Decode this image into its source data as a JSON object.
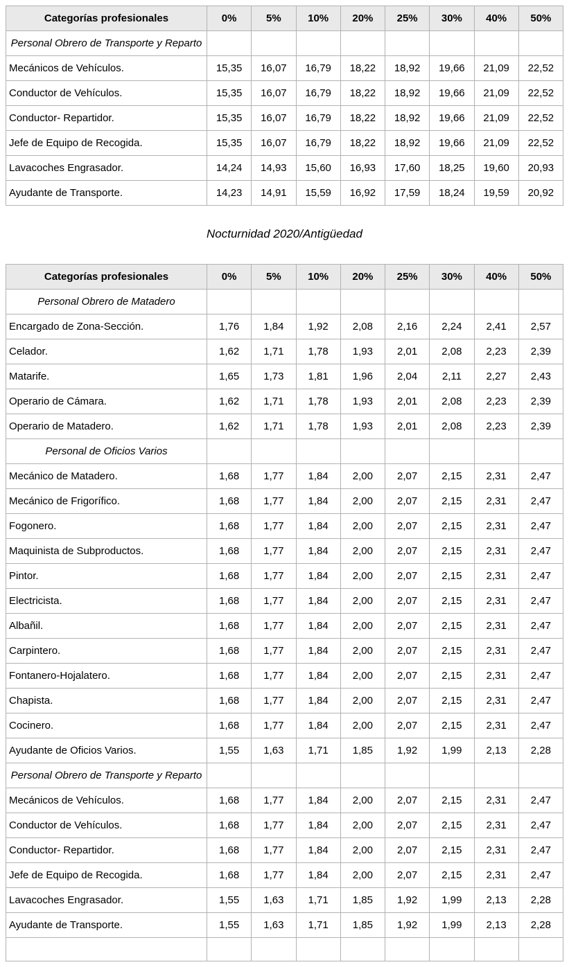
{
  "section_title": "Nocturnidad 2020/Antigüedad",
  "columns": [
    "Categorías profesionales",
    "0%",
    "5%",
    "10%",
    "20%",
    "25%",
    "30%",
    "40%",
    "50%"
  ],
  "colors": {
    "header_bg": "#e9e9e9",
    "border": "#b2b2b2",
    "text": "#000000"
  },
  "tables": [
    {
      "sections": [
        {
          "name": "Personal Obrero de Transporte y Reparto",
          "rows": [
            {
              "label": "Mecánicos de Vehículos.",
              "values": [
                "15,35",
                "16,07",
                "16,79",
                "18,22",
                "18,92",
                "19,66",
                "21,09",
                "22,52"
              ]
            },
            {
              "label": "Conductor de Vehículos.",
              "values": [
                "15,35",
                "16,07",
                "16,79",
                "18,22",
                "18,92",
                "19,66",
                "21,09",
                "22,52"
              ]
            },
            {
              "label": "Conductor- Repartidor.",
              "values": [
                "15,35",
                "16,07",
                "16,79",
                "18,22",
                "18,92",
                "19,66",
                "21,09",
                "22,52"
              ]
            },
            {
              "label": "Jefe de Equipo de Recogida.",
              "values": [
                "15,35",
                "16,07",
                "16,79",
                "18,22",
                "18,92",
                "19,66",
                "21,09",
                "22,52"
              ]
            },
            {
              "label": "Lavacoches Engrasador.",
              "values": [
                "14,24",
                "14,93",
                "15,60",
                "16,93",
                "17,60",
                "18,25",
                "19,60",
                "20,93"
              ]
            },
            {
              "label": "Ayudante de Transporte.",
              "values": [
                "14,23",
                "14,91",
                "15,59",
                "16,92",
                "17,59",
                "18,24",
                "19,59",
                "20,92"
              ]
            }
          ]
        }
      ]
    },
    {
      "sections": [
        {
          "name": "Personal Obrero de Matadero",
          "rows": [
            {
              "label": "Encargado de Zona-Sección.",
              "values": [
                "1,76",
                "1,84",
                "1,92",
                "2,08",
                "2,16",
                "2,24",
                "2,41",
                "2,57"
              ]
            },
            {
              "label": "Celador.",
              "values": [
                "1,62",
                "1,71",
                "1,78",
                "1,93",
                "2,01",
                "2,08",
                "2,23",
                "2,39"
              ]
            },
            {
              "label": "Matarife.",
              "values": [
                "1,65",
                "1,73",
                "1,81",
                "1,96",
                "2,04",
                "2,11",
                "2,27",
                "2,43"
              ]
            },
            {
              "label": "Operario de Cámara.",
              "values": [
                "1,62",
                "1,71",
                "1,78",
                "1,93",
                "2,01",
                "2,08",
                "2,23",
                "2,39"
              ]
            },
            {
              "label": "Operario de Matadero.",
              "values": [
                "1,62",
                "1,71",
                "1,78",
                "1,93",
                "2,01",
                "2,08",
                "2,23",
                "2,39"
              ]
            }
          ]
        },
        {
          "name": "Personal de Oficios Varios",
          "rows": [
            {
              "label": "Mecánico de Matadero.",
              "values": [
                "1,68",
                "1,77",
                "1,84",
                "2,00",
                "2,07",
                "2,15",
                "2,31",
                "2,47"
              ]
            },
            {
              "label": "Mecánico de Frigorífico.",
              "values": [
                "1,68",
                "1,77",
                "1,84",
                "2,00",
                "2,07",
                "2,15",
                "2,31",
                "2,47"
              ]
            },
            {
              "label": "Fogonero.",
              "values": [
                "1,68",
                "1,77",
                "1,84",
                "2,00",
                "2,07",
                "2,15",
                "2,31",
                "2,47"
              ]
            },
            {
              "label": "Maquinista de Subproductos.",
              "values": [
                "1,68",
                "1,77",
                "1,84",
                "2,00",
                "2,07",
                "2,15",
                "2,31",
                "2,47"
              ]
            },
            {
              "label": "Pintor.",
              "values": [
                "1,68",
                "1,77",
                "1,84",
                "2,00",
                "2,07",
                "2,15",
                "2,31",
                "2,47"
              ]
            },
            {
              "label": "Electricista.",
              "values": [
                "1,68",
                "1,77",
                "1,84",
                "2,00",
                "2,07",
                "2,15",
                "2,31",
                "2,47"
              ]
            },
            {
              "label": "Albañil.",
              "values": [
                "1,68",
                "1,77",
                "1,84",
                "2,00",
                "2,07",
                "2,15",
                "2,31",
                "2,47"
              ]
            },
            {
              "label": "Carpintero.",
              "values": [
                "1,68",
                "1,77",
                "1,84",
                "2,00",
                "2,07",
                "2,15",
                "2,31",
                "2,47"
              ]
            },
            {
              "label": "Fontanero-Hojalatero.",
              "values": [
                "1,68",
                "1,77",
                "1,84",
                "2,00",
                "2,07",
                "2,15",
                "2,31",
                "2,47"
              ]
            },
            {
              "label": "Chapista.",
              "values": [
                "1,68",
                "1,77",
                "1,84",
                "2,00",
                "2,07",
                "2,15",
                "2,31",
                "2,47"
              ]
            },
            {
              "label": "Cocinero.",
              "values": [
                "1,68",
                "1,77",
                "1,84",
                "2,00",
                "2,07",
                "2,15",
                "2,31",
                "2,47"
              ]
            },
            {
              "label": "Ayudante de Oficios Varios.",
              "values": [
                "1,55",
                "1,63",
                "1,71",
                "1,85",
                "1,92",
                "1,99",
                "2,13",
                "2,28"
              ]
            }
          ]
        },
        {
          "name": "Personal Obrero de Transporte y Reparto",
          "rows": [
            {
              "label": "Mecánicos de Vehículos.",
              "values": [
                "1,68",
                "1,77",
                "1,84",
                "2,00",
                "2,07",
                "2,15",
                "2,31",
                "2,47"
              ]
            },
            {
              "label": "Conductor de Vehículos.",
              "values": [
                "1,68",
                "1,77",
                "1,84",
                "2,00",
                "2,07",
                "2,15",
                "2,31",
                "2,47"
              ]
            },
            {
              "label": "Conductor- Repartidor.",
              "values": [
                "1,68",
                "1,77",
                "1,84",
                "2,00",
                "2,07",
                "2,15",
                "2,31",
                "2,47"
              ]
            },
            {
              "label": "Jefe de Equipo de Recogida.",
              "values": [
                "1,68",
                "1,77",
                "1,84",
                "2,00",
                "2,07",
                "2,15",
                "2,31",
                "2,47"
              ]
            },
            {
              "label": "Lavacoches Engrasador.",
              "values": [
                "1,55",
                "1,63",
                "1,71",
                "1,85",
                "1,92",
                "1,99",
                "2,13",
                "2,28"
              ]
            },
            {
              "label": "Ayudante de Transporte.",
              "values": [
                "1,55",
                "1,63",
                "1,71",
                "1,85",
                "1,92",
                "1,99",
                "2,13",
                "2,28"
              ]
            }
          ]
        }
      ]
    }
  ]
}
